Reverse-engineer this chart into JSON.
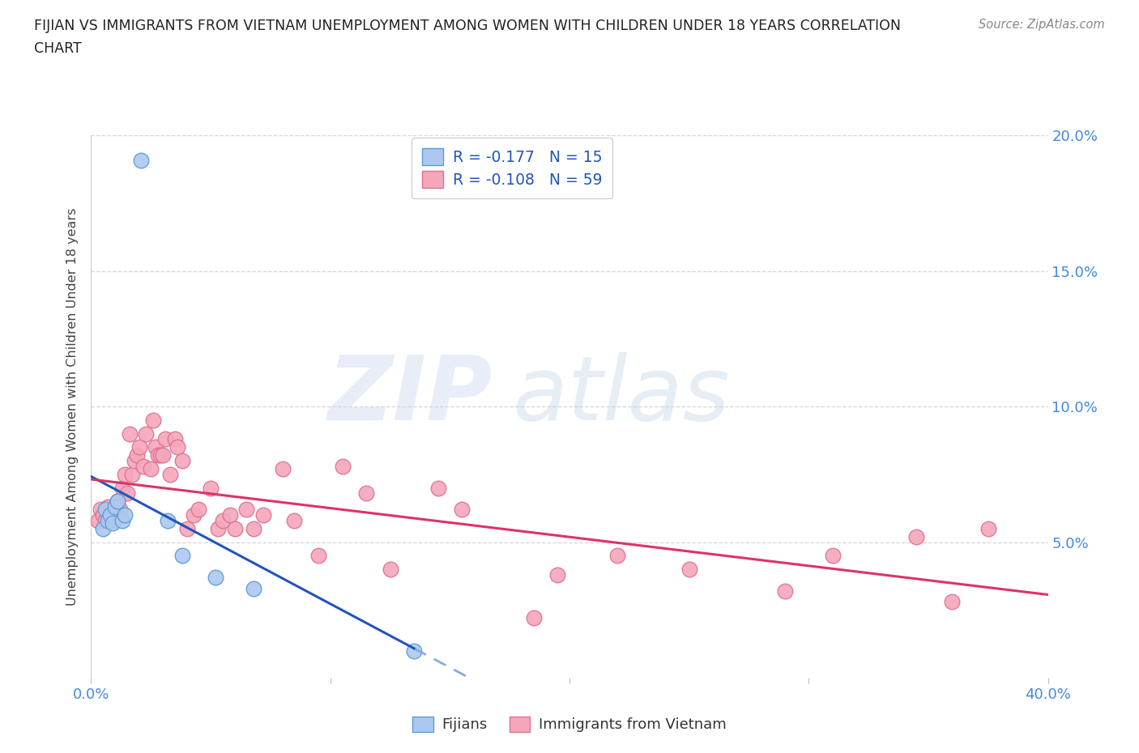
{
  "title_line1": "FIJIAN VS IMMIGRANTS FROM VIETNAM UNEMPLOYMENT AMONG WOMEN WITH CHILDREN UNDER 18 YEARS CORRELATION",
  "title_line2": "CHART",
  "source": "Source: ZipAtlas.com",
  "ylabel": "Unemployment Among Women with Children Under 18 years",
  "watermark": "ZIPatlas",
  "fijian_R": -0.177,
  "fijian_N": 15,
  "vietnam_R": -0.108,
  "vietnam_N": 59,
  "xlim": [
    0.0,
    0.4
  ],
  "ylim": [
    0.0,
    0.2
  ],
  "xticks": [
    0.0,
    0.1,
    0.2,
    0.3,
    0.4
  ],
  "yticks": [
    0.05,
    0.1,
    0.15,
    0.2
  ],
  "fijian_color": "#adc8ef",
  "fijian_edge_color": "#5b9bd5",
  "vietnam_color": "#f4a7bb",
  "vietnam_edge_color": "#e07090",
  "fijian_line_color": "#2255bb",
  "vietnam_line_color": "#dd3366",
  "fijian_dash_color": "#88aadd",
  "background_color": "#ffffff",
  "grid_color": "#cccccc",
  "title_color": "#222222",
  "axis_color": "#4488dd",
  "legend_R_color": "#2255bb",
  "fijian_x": [
    0.021,
    0.005,
    0.006,
    0.007,
    0.008,
    0.009,
    0.01,
    0.011,
    0.013,
    0.014,
    0.032,
    0.038,
    0.052,
    0.068,
    0.135
  ],
  "fijian_y": [
    0.191,
    0.055,
    0.062,
    0.058,
    0.06,
    0.057,
    0.063,
    0.065,
    0.058,
    0.06,
    0.058,
    0.045,
    0.037,
    0.033,
    0.01
  ],
  "vietnam_x": [
    0.003,
    0.004,
    0.005,
    0.006,
    0.007,
    0.008,
    0.009,
    0.01,
    0.011,
    0.012,
    0.013,
    0.014,
    0.015,
    0.016,
    0.017,
    0.018,
    0.019,
    0.02,
    0.022,
    0.023,
    0.025,
    0.026,
    0.027,
    0.028,
    0.029,
    0.03,
    0.031,
    0.033,
    0.035,
    0.036,
    0.038,
    0.04,
    0.043,
    0.045,
    0.05,
    0.053,
    0.055,
    0.058,
    0.06,
    0.065,
    0.068,
    0.072,
    0.08,
    0.085,
    0.095,
    0.105,
    0.115,
    0.125,
    0.145,
    0.155,
    0.185,
    0.195,
    0.22,
    0.25,
    0.29,
    0.31,
    0.345,
    0.36,
    0.375
  ],
  "vietnam_y": [
    0.058,
    0.062,
    0.06,
    0.058,
    0.063,
    0.06,
    0.058,
    0.06,
    0.065,
    0.062,
    0.07,
    0.075,
    0.068,
    0.09,
    0.075,
    0.08,
    0.082,
    0.085,
    0.078,
    0.09,
    0.077,
    0.095,
    0.085,
    0.082,
    0.082,
    0.082,
    0.088,
    0.075,
    0.088,
    0.085,
    0.08,
    0.055,
    0.06,
    0.062,
    0.07,
    0.055,
    0.058,
    0.06,
    0.055,
    0.062,
    0.055,
    0.06,
    0.077,
    0.058,
    0.045,
    0.078,
    0.068,
    0.04,
    0.07,
    0.062,
    0.022,
    0.038,
    0.045,
    0.04,
    0.032,
    0.045,
    0.052,
    0.028,
    0.055
  ]
}
